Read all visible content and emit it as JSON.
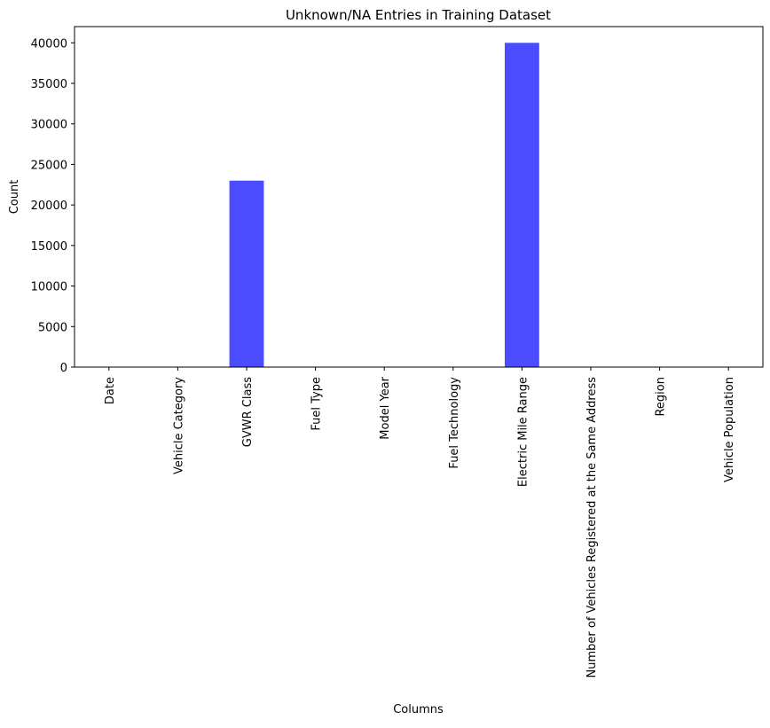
{
  "chart_data": {
    "type": "bar",
    "title": "Unknown/NA Entries in Training Dataset",
    "xlabel": "Columns",
    "ylabel": "Count",
    "categories": [
      "Date",
      "Vehicle Category",
      "GVWR Class",
      "Fuel Type",
      "Model Year",
      "Fuel Technology",
      "Electric Mile Range",
      "Number of Vehicles Registered at the Same Address",
      "Region",
      "Vehicle Population"
    ],
    "values": [
      0,
      0,
      23000,
      0,
      0,
      0,
      40000,
      0,
      0,
      0
    ],
    "ylim": [
      0,
      42000
    ],
    "yticks": [
      0,
      5000,
      10000,
      15000,
      20000,
      25000,
      30000,
      35000,
      40000
    ],
    "ytick_labels": [
      "0",
      "5000",
      "10000",
      "15000",
      "20000",
      "25000",
      "30000",
      "35000",
      "40000"
    ],
    "bar_color": "#4b4bff",
    "grid": false,
    "legend": "none"
  }
}
